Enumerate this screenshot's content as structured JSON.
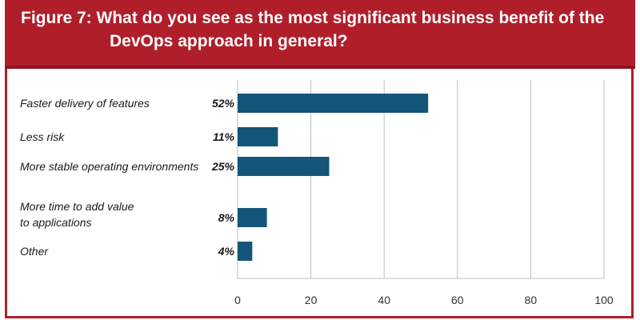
{
  "header": {
    "title_line1": "Figure 7: What do you see as the most significant business benefit of the",
    "title_line2": "DevOps approach in general?"
  },
  "colors": {
    "header_bg": "#b01e2a",
    "bar": "#14557a",
    "grid": "#bfbfbf"
  },
  "chart_data": {
    "type": "bar",
    "orientation": "horizontal",
    "categories": [
      [
        "Faster delivery of features"
      ],
      [
        "Less risk"
      ],
      [
        "More stable operating environments"
      ],
      [
        "More time to add value",
        "to applications"
      ],
      [
        "Other"
      ]
    ],
    "values": [
      52,
      11,
      25,
      8,
      4
    ],
    "value_labels": [
      "52%",
      "11%",
      "25%",
      "8%",
      "4%"
    ],
    "xlim": [
      0,
      100
    ],
    "xticks": [
      0,
      20,
      40,
      60,
      80,
      100
    ],
    "grid": true
  }
}
